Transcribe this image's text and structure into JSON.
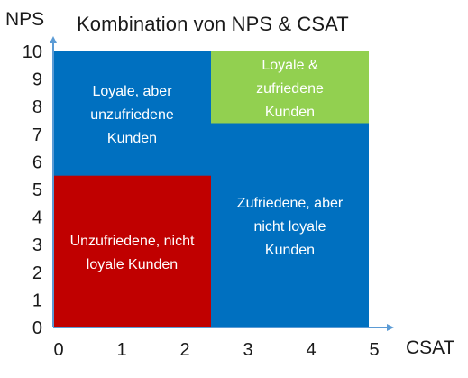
{
  "chart_data": {
    "type": "quadrant",
    "title": "Kombination von NPS & CSAT",
    "xlabel": "CSAT",
    "ylabel": "NPS",
    "xlim": [
      0,
      5
    ],
    "ylim": [
      0,
      10
    ],
    "xticks": [
      "0",
      "1",
      "2",
      "3",
      "4",
      "5"
    ],
    "yticks": [
      "0",
      "1",
      "2",
      "3",
      "4",
      "5",
      "6",
      "7",
      "8",
      "9",
      "10"
    ],
    "regions": [
      {
        "name": "blue-background",
        "x": [
          0,
          5
        ],
        "y": [
          0,
          10
        ],
        "color": "#0070c0",
        "lines": []
      },
      {
        "name": "loyal-unsatisfied",
        "x": [
          0,
          2.5
        ],
        "y": [
          5.5,
          10
        ],
        "color": "#0070c0",
        "lines": [
          "Loyale, aber",
          "unzufriedene",
          "Kunden"
        ]
      },
      {
        "name": "loyal-satisfied",
        "x": [
          2.5,
          5
        ],
        "y": [
          7.4,
          10
        ],
        "color": "#92d050",
        "lines": [
          "Loyale &",
          "zufriedene",
          "Kunden"
        ]
      },
      {
        "name": "satisfied-not-loyal",
        "x": [
          2.5,
          5
        ],
        "y": [
          0,
          7.4
        ],
        "color": "#0070c0",
        "lines": [
          "Zufriedene, aber",
          "nicht loyale",
          "Kunden"
        ]
      },
      {
        "name": "unsatisfied-not-loyal",
        "x": [
          0,
          2.5
        ],
        "y": [
          0,
          5.5
        ],
        "color": "#c00000",
        "lines": [
          "Unzufriedene, nicht",
          "loyale Kunden"
        ]
      }
    ],
    "axis_color": "#5b9bd5",
    "grid": false
  }
}
